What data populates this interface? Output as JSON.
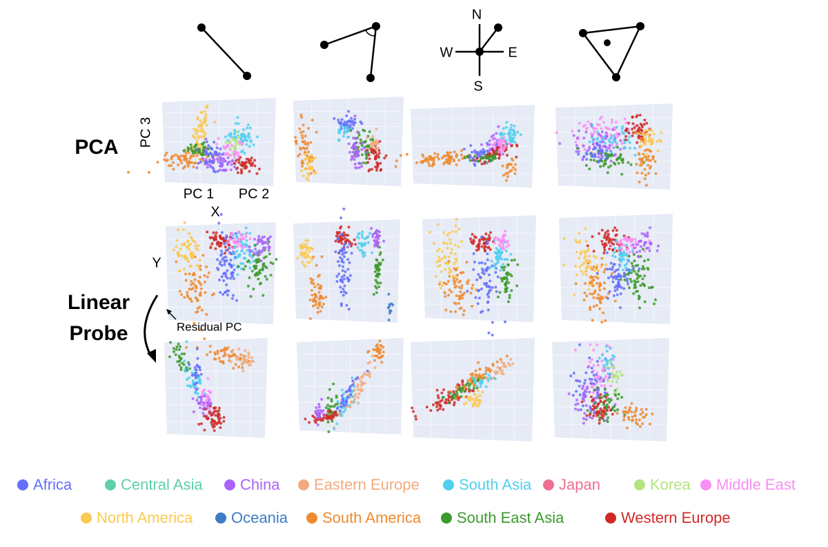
{
  "labels": {
    "pca": "PCA",
    "pc3": "PC 3",
    "pc1": "PC 1",
    "pc2": "PC 2",
    "x": "X",
    "y": "Y",
    "linear_probe_lines": [
      "Linear",
      "Probe"
    ],
    "residual_pc": "Residual PC"
  },
  "compass": {
    "n": "N",
    "w": "W",
    "e": "E",
    "s": "S"
  },
  "legend": [
    {
      "name": "Africa",
      "color": "#636efa"
    },
    {
      "name": "Central Asia",
      "color": "#5fcfa6"
    },
    {
      "name": "China",
      "color": "#ab63fa"
    },
    {
      "name": "Eastern Europe",
      "color": "#f2ab7f"
    },
    {
      "name": "South Asia",
      "color": "#4fcff0"
    },
    {
      "name": "Japan",
      "color": "#ee6f91"
    },
    {
      "name": "Korea",
      "color": "#b4e47e"
    },
    {
      "name": "Middle East",
      "color": "#f98ef5"
    },
    {
      "name": "North America",
      "color": "#fbc94f"
    },
    {
      "name": "Oceania",
      "color": "#3f7cc4"
    },
    {
      "name": "South America",
      "color": "#ef8a2e"
    },
    {
      "name": "South East Asia",
      "color": "#3c9a2c"
    },
    {
      "name": "Western Europe",
      "color": "#d02a26"
    }
  ]
}
